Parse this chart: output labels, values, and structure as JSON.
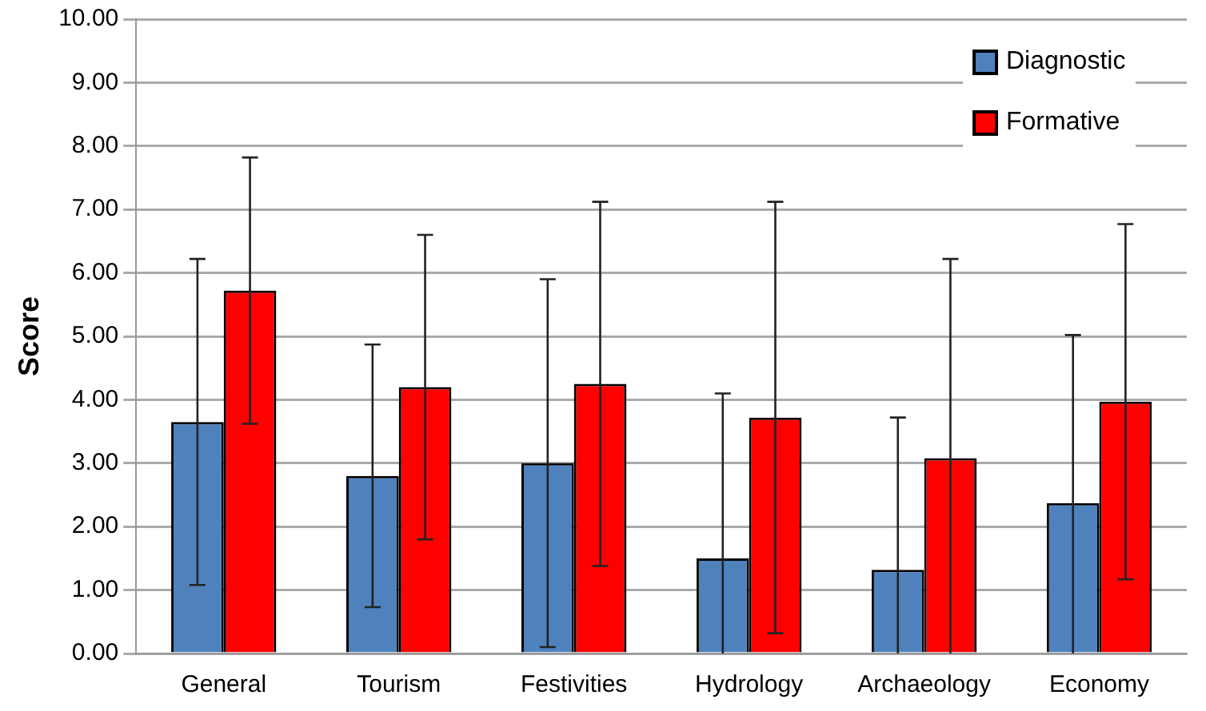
{
  "chart_data": {
    "type": "bar",
    "ylabel": "Score",
    "categories": [
      "General",
      "Tourism",
      "Festivities",
      "Hydrology",
      "Archaeology",
      "Economy"
    ],
    "series": [
      {
        "name": "Diagnostic",
        "color": "#4f81bd",
        "values": [
          3.65,
          2.8,
          3.0,
          1.5,
          1.32,
          2.37
        ],
        "errors": [
          2.57,
          2.07,
          2.9,
          [
            0,
            4.1
          ],
          [
            0,
            3.72
          ],
          [
            0,
            5.02
          ]
        ]
      },
      {
        "name": "Formative",
        "color": "#ff0000",
        "values": [
          5.72,
          4.2,
          4.25,
          3.72,
          3.08,
          3.97
        ],
        "errors": [
          2.1,
          2.4,
          2.87,
          3.4,
          [
            0,
            6.22
          ],
          2.8
        ]
      }
    ],
    "ylim": [
      0,
      10
    ],
    "yticks": [
      {
        "value": 0,
        "label": "0.00"
      },
      {
        "value": 1,
        "label": "1.00"
      },
      {
        "value": 2,
        "label": "2.00"
      },
      {
        "value": 3,
        "label": "3.00"
      },
      {
        "value": 4,
        "label": "4.00"
      },
      {
        "value": 5,
        "label": "5.00"
      },
      {
        "value": 6,
        "label": "6.00"
      },
      {
        "value": 7,
        "label": "7.00"
      },
      {
        "value": 8,
        "label": "8.00"
      },
      {
        "value": 9,
        "label": "9.00"
      },
      {
        "value": 10,
        "label": "10.00"
      }
    ],
    "grid": "y",
    "legend": "top right"
  }
}
